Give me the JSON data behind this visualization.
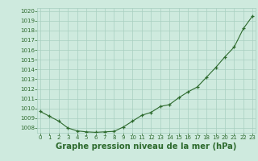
{
  "hours": [
    0,
    1,
    2,
    3,
    4,
    5,
    6,
    7,
    8,
    9,
    10,
    11,
    12,
    13,
    14,
    15,
    16,
    17,
    18,
    19,
    20,
    21,
    22,
    23
  ],
  "pressure": [
    1009.7,
    1009.2,
    1008.7,
    1008.0,
    1007.7,
    1007.6,
    1007.55,
    1007.6,
    1007.65,
    1008.1,
    1008.7,
    1009.3,
    1009.6,
    1010.2,
    1010.4,
    1011.1,
    1011.7,
    1012.2,
    1013.2,
    1014.2,
    1015.3,
    1016.3,
    1018.2,
    1019.5
  ],
  "ylim_min": 1007.5,
  "ylim_max": 1020.3,
  "yticks": [
    1008,
    1009,
    1010,
    1011,
    1012,
    1013,
    1014,
    1015,
    1016,
    1017,
    1018,
    1019,
    1020
  ],
  "xlim_min": -0.3,
  "xlim_max": 23.3,
  "xticks": [
    0,
    1,
    2,
    3,
    4,
    5,
    6,
    7,
    8,
    9,
    10,
    11,
    12,
    13,
    14,
    15,
    16,
    17,
    18,
    19,
    20,
    21,
    22,
    23
  ],
  "line_color": "#2d6a2d",
  "marker_color": "#2d6a2d",
  "bg_color": "#ceeade",
  "grid_color": "#a8cfc0",
  "title": "Graphe pression niveau de la mer (hPa)",
  "title_color": "#2d6a2d",
  "tick_fontsize": 5.0,
  "title_fontsize": 7.2
}
